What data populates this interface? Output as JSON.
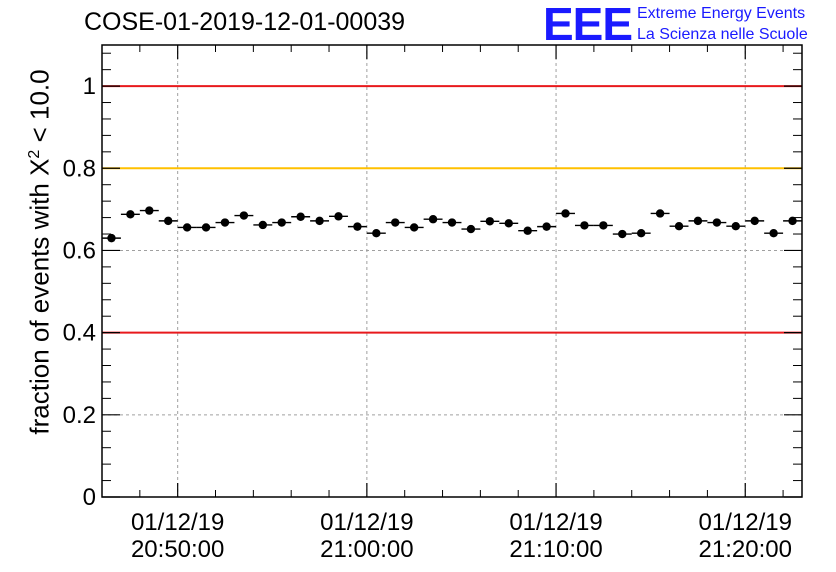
{
  "chart_data": {
    "type": "scatter",
    "title": "COSE-01-2019-12-01-00039",
    "ylabel": "fraction of events with X",
    "ylabel_exponent": "2",
    "ylabel_suffix": "< 10.0",
    "ylim": [
      0,
      1.1
    ],
    "yticks": [
      0,
      0.2,
      0.4,
      0.6,
      0.8,
      1
    ],
    "ytick_labels": [
      "0",
      "0.2",
      "0.4",
      "0.6",
      "0.8",
      "1"
    ],
    "x_unit": "minutes since 20:46:00",
    "xlim": [
      0,
      37
    ],
    "xticks": [
      4,
      14,
      24,
      34
    ],
    "xtick_labels": [
      [
        "01/12/19",
        "20:50:00"
      ],
      [
        "01/12/19",
        "21:00:00"
      ],
      [
        "01/12/19",
        "21:10:00"
      ],
      [
        "01/12/19",
        "21:20:00"
      ]
    ],
    "grid": true,
    "reference_lines": [
      {
        "y": 1.0,
        "color": "#e8191c"
      },
      {
        "y": 0.8,
        "color": "#ffc000"
      },
      {
        "y": 0.4,
        "color": "#e8191c"
      }
    ],
    "bin_width": 1,
    "x": [
      0.5,
      1.5,
      2.5,
      3.5,
      4.5,
      5.5,
      6.5,
      7.5,
      8.5,
      9.5,
      10.5,
      11.5,
      12.5,
      13.5,
      14.5,
      15.5,
      16.5,
      17.5,
      18.5,
      19.5,
      20.5,
      21.5,
      22.5,
      23.5,
      24.5,
      25.5,
      26.5,
      27.5,
      28.5,
      29.5,
      30.5,
      31.5,
      32.5,
      33.5,
      34.5,
      35.5,
      36.5
    ],
    "y": [
      0.63,
      0.688,
      0.697,
      0.672,
      0.656,
      0.656,
      0.668,
      0.685,
      0.662,
      0.668,
      0.682,
      0.672,
      0.683,
      0.658,
      0.642,
      0.668,
      0.656,
      0.676,
      0.668,
      0.652,
      0.671,
      0.666,
      0.648,
      0.658,
      0.69,
      0.661,
      0.661,
      0.64,
      0.642,
      0.69,
      0.659,
      0.672,
      0.668,
      0.659,
      0.672,
      0.642,
      0.672
    ],
    "y_error": 0.009
  },
  "logo": {
    "mark": "EEE",
    "line1": "Extreme Energy Events",
    "line2": "La Scienza nelle Scuole"
  }
}
